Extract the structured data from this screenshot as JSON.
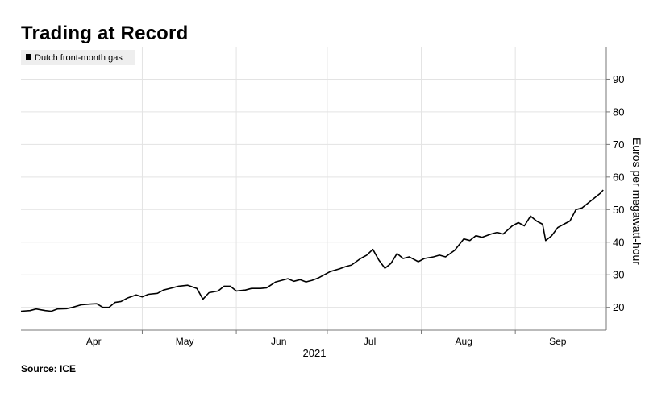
{
  "page": {
    "title": "Trading at Record",
    "source": "Source: ICE"
  },
  "colors": {
    "line": "#000000",
    "grid": "#e3e3e3",
    "axis": "#777777",
    "legend_bg": "#eeeeee"
  },
  "chart_data": {
    "type": "line",
    "title": "Trading at Record",
    "legend": {
      "items": [
        "Dutch front-month gas"
      ],
      "placement": "top-left"
    },
    "xlabel": "2021",
    "ylabel": "Euros per megawatt-hour",
    "x_ticks": [
      "Apr",
      "May",
      "Jun",
      "Jul",
      "Aug",
      "Sep"
    ],
    "x_tick_dates": [
      "2021-04-15",
      "2021-05-15",
      "2021-06-15",
      "2021-07-15",
      "2021-08-15",
      "2021-09-15"
    ],
    "x_gridlines": [
      "2021-05-01",
      "2021-06-01",
      "2021-07-01",
      "2021-08-01",
      "2021-09-01"
    ],
    "xlim": [
      "2021-03-22",
      "2021-10-01"
    ],
    "ylim": [
      13,
      100
    ],
    "y_ticks": [
      20,
      30,
      40,
      50,
      60,
      70,
      80,
      90
    ],
    "grid": true,
    "series": [
      {
        "name": "Dutch front-month gas",
        "points": [
          [
            "2021-03-22",
            18.8
          ],
          [
            "2021-03-25",
            19.0
          ],
          [
            "2021-03-27",
            19.5
          ],
          [
            "2021-03-30",
            19.0
          ],
          [
            "2021-04-01",
            18.8
          ],
          [
            "2021-04-03",
            19.5
          ],
          [
            "2021-04-06",
            19.6
          ],
          [
            "2021-04-08",
            20.0
          ],
          [
            "2021-04-11",
            20.8
          ],
          [
            "2021-04-14",
            21.0
          ],
          [
            "2021-04-16",
            21.1
          ],
          [
            "2021-04-18",
            20.0
          ],
          [
            "2021-04-20",
            20.0
          ],
          [
            "2021-04-22",
            21.5
          ],
          [
            "2021-04-24",
            21.8
          ],
          [
            "2021-04-26",
            22.8
          ],
          [
            "2021-04-29",
            23.8
          ],
          [
            "2021-05-01",
            23.2
          ],
          [
            "2021-05-03",
            24.0
          ],
          [
            "2021-05-06",
            24.3
          ],
          [
            "2021-05-08",
            25.3
          ],
          [
            "2021-05-11",
            26.0
          ],
          [
            "2021-05-13",
            26.5
          ],
          [
            "2021-05-16",
            26.8
          ],
          [
            "2021-05-19",
            25.8
          ],
          [
            "2021-05-21",
            22.5
          ],
          [
            "2021-05-23",
            24.5
          ],
          [
            "2021-05-26",
            25.0
          ],
          [
            "2021-05-28",
            26.5
          ],
          [
            "2021-05-30",
            26.5
          ],
          [
            "2021-06-01",
            25.0
          ],
          [
            "2021-06-04",
            25.3
          ],
          [
            "2021-06-06",
            25.8
          ],
          [
            "2021-06-09",
            25.8
          ],
          [
            "2021-06-11",
            26.0
          ],
          [
            "2021-06-14",
            27.8
          ],
          [
            "2021-06-16",
            28.3
          ],
          [
            "2021-06-18",
            28.8
          ],
          [
            "2021-06-20",
            28.0
          ],
          [
            "2021-06-22",
            28.5
          ],
          [
            "2021-06-24",
            27.8
          ],
          [
            "2021-06-26",
            28.3
          ],
          [
            "2021-06-28",
            29.0
          ],
          [
            "2021-06-30",
            30.0
          ],
          [
            "2021-07-02",
            31.0
          ],
          [
            "2021-07-05",
            31.8
          ],
          [
            "2021-07-07",
            32.5
          ],
          [
            "2021-07-09",
            33.0
          ],
          [
            "2021-07-12",
            35.0
          ],
          [
            "2021-07-14",
            36.0
          ],
          [
            "2021-07-16",
            37.8
          ],
          [
            "2021-07-18",
            34.5
          ],
          [
            "2021-07-20",
            32.0
          ],
          [
            "2021-07-22",
            33.5
          ],
          [
            "2021-07-24",
            36.5
          ],
          [
            "2021-07-26",
            35.0
          ],
          [
            "2021-07-28",
            35.5
          ],
          [
            "2021-07-31",
            34.0
          ],
          [
            "2021-08-02",
            35.0
          ],
          [
            "2021-08-05",
            35.5
          ],
          [
            "2021-08-07",
            36.0
          ],
          [
            "2021-08-09",
            35.5
          ],
          [
            "2021-08-12",
            37.5
          ],
          [
            "2021-08-15",
            41.0
          ],
          [
            "2021-08-17",
            40.5
          ],
          [
            "2021-08-19",
            42.0
          ],
          [
            "2021-08-21",
            41.5
          ],
          [
            "2021-08-24",
            42.5
          ],
          [
            "2021-08-26",
            43.0
          ],
          [
            "2021-08-28",
            42.5
          ],
          [
            "2021-08-31",
            45.0
          ],
          [
            "2021-09-02",
            46.0
          ],
          [
            "2021-09-04",
            45.0
          ],
          [
            "2021-09-06",
            48.0
          ],
          [
            "2021-09-08",
            46.5
          ],
          [
            "2021-09-10",
            45.5
          ],
          [
            "2021-09-11",
            40.5
          ],
          [
            "2021-09-13",
            42.0
          ],
          [
            "2021-09-15",
            44.5
          ],
          [
            "2021-09-17",
            45.5
          ],
          [
            "2021-09-19",
            46.5
          ],
          [
            "2021-09-21",
            50.0
          ],
          [
            "2021-09-23",
            50.5
          ],
          [
            "2021-09-25",
            52.0
          ],
          [
            "2021-09-27",
            53.5
          ],
          [
            "2021-09-29",
            55.0
          ],
          [
            "2021-09-30",
            56.0
          ]
        ]
      }
    ]
  }
}
